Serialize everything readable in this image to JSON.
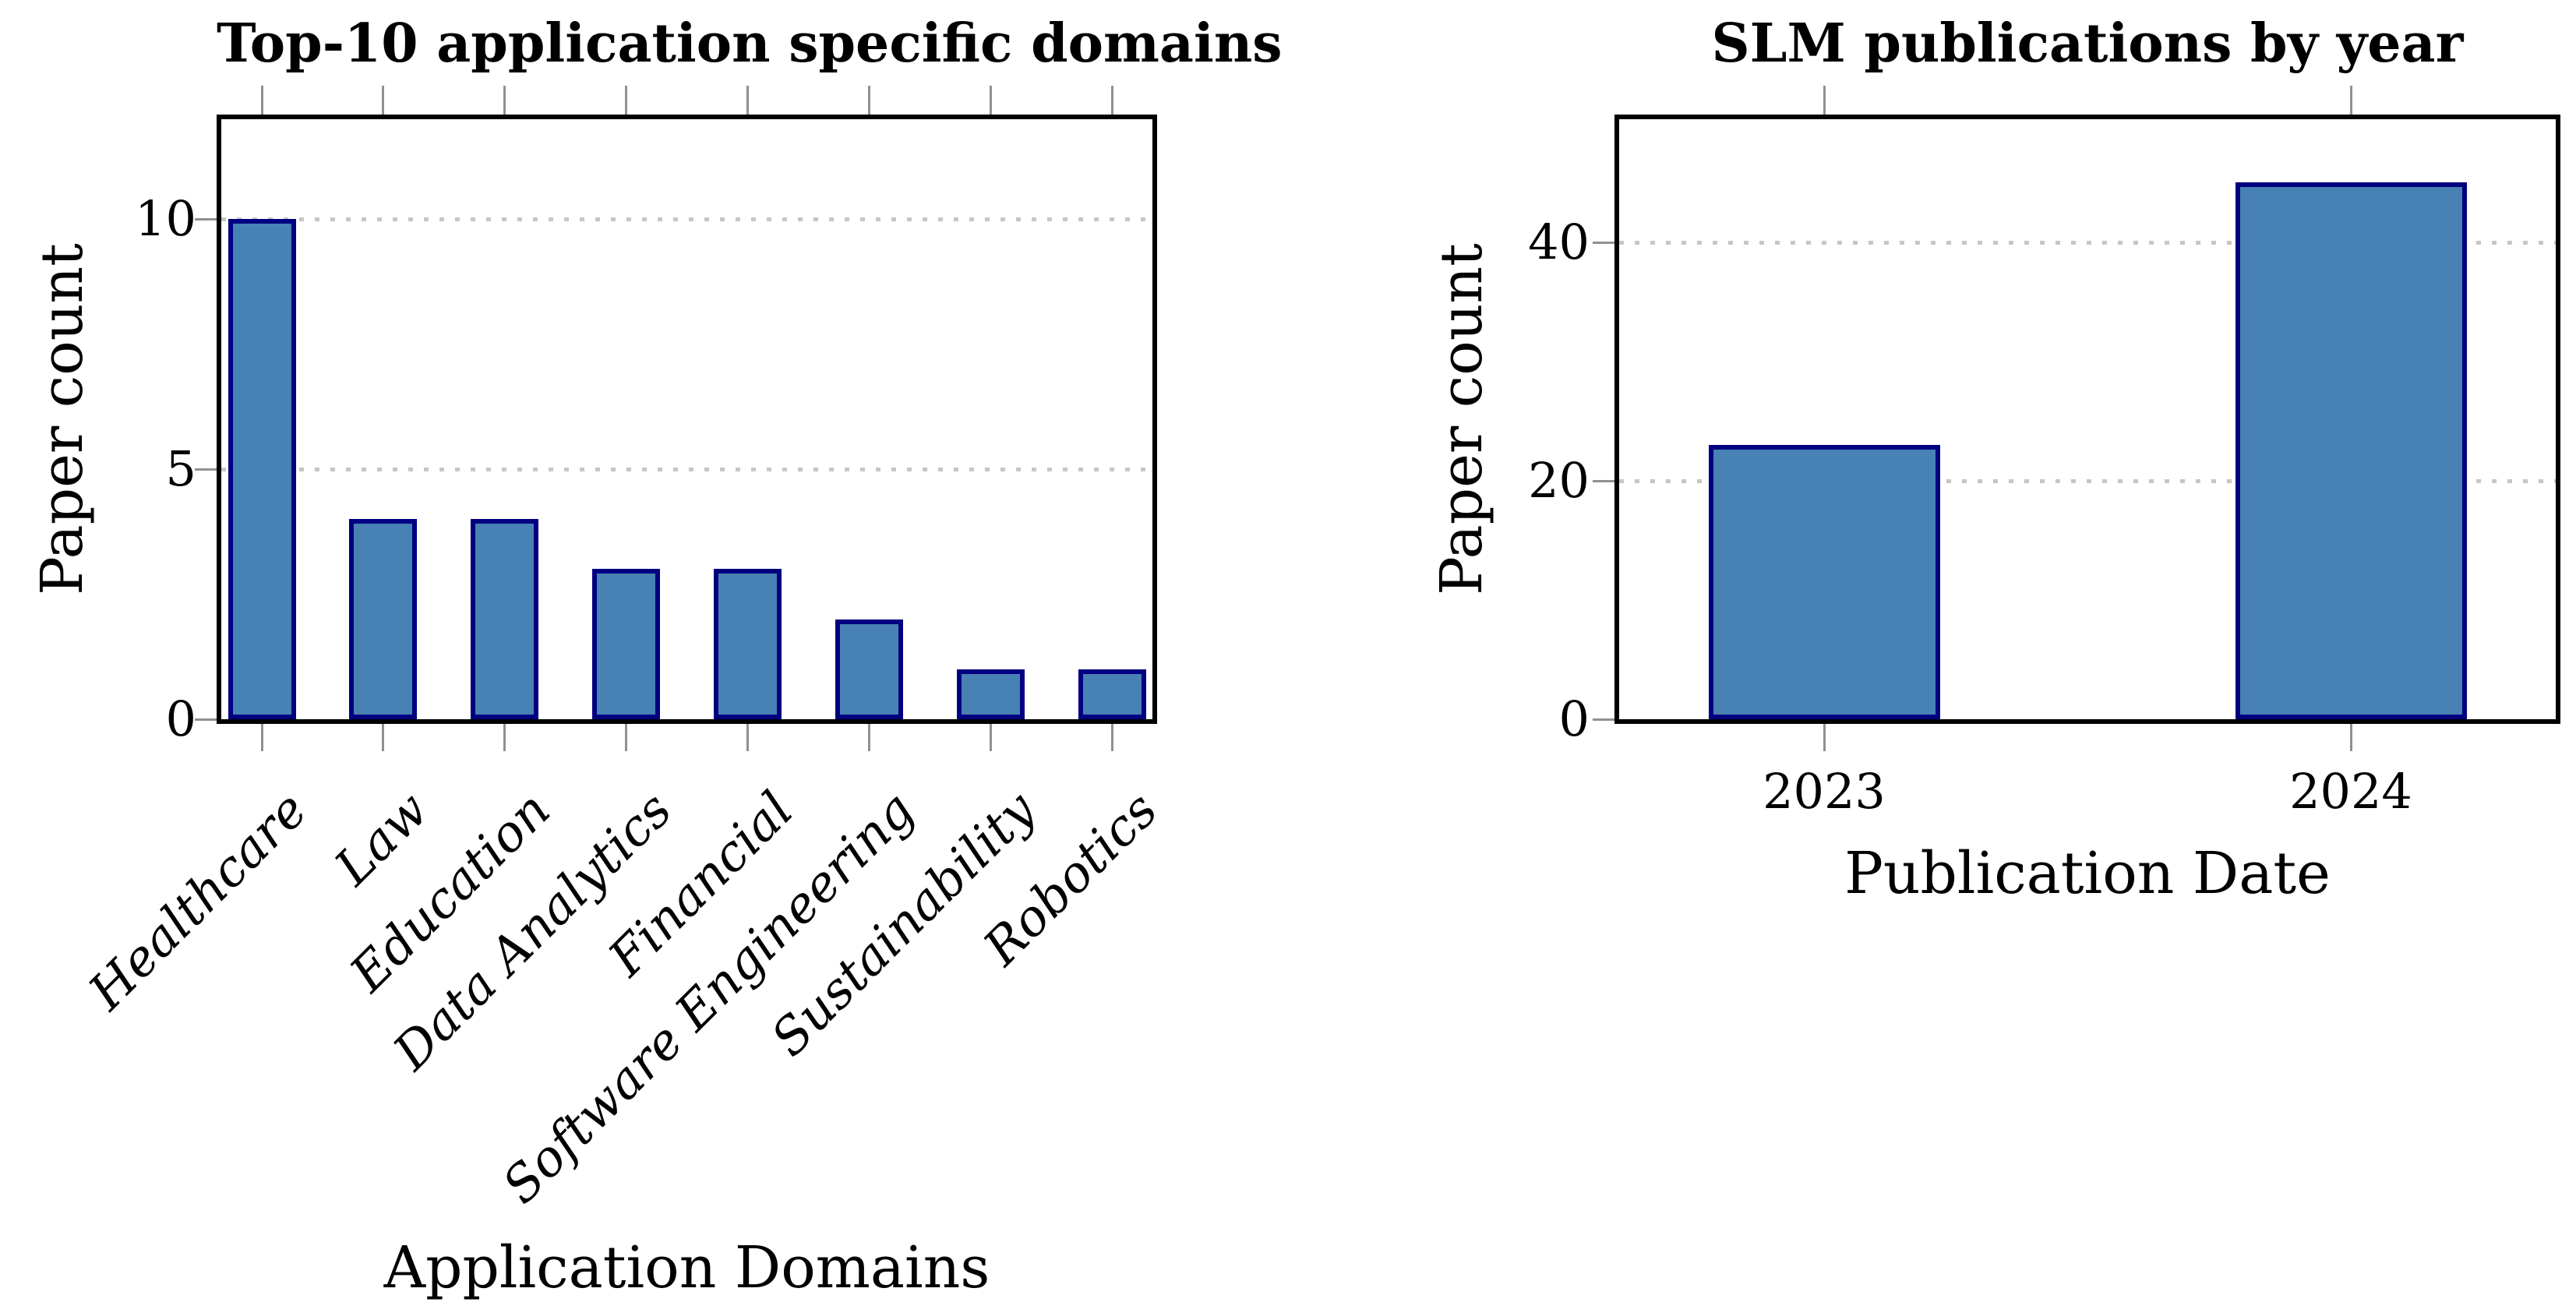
{
  "colors": {
    "bar_fill": "#4881B4",
    "bar_border": "#000080",
    "grid": "#C6C6C6",
    "tick": "#909090",
    "frame": "#000000",
    "text": "#000000",
    "background": "#FFFFFF"
  },
  "chart_data": [
    {
      "type": "bar",
      "title": "Top-10 application specific domains",
      "xlabel": "Application Domains",
      "ylabel": "Paper count",
      "categories": [
        "Healthcare",
        "Law",
        "Education",
        "Data Analytics",
        "Financial",
        "Software Engineering",
        "Sustainability",
        "Robotics"
      ],
      "values": [
        10,
        4,
        4,
        3,
        3,
        2,
        1,
        1
      ],
      "yticks": [
        0,
        5,
        10
      ],
      "ylim": [
        0,
        12
      ],
      "grid": "dotted horizontal at major y ticks",
      "legend": "none",
      "category_label_rotation": 45,
      "category_label_italic": true
    },
    {
      "type": "bar",
      "title": "SLM publications by year",
      "xlabel": "Publication Date",
      "ylabel": "Paper count",
      "categories": [
        "2023",
        "2024"
      ],
      "values": [
        23,
        45
      ],
      "yticks": [
        0,
        20,
        40
      ],
      "ylim": [
        0,
        50
      ],
      "grid": "dotted horizontal at major y ticks",
      "legend": "none",
      "category_label_rotation": 0,
      "category_label_italic": false
    }
  ]
}
